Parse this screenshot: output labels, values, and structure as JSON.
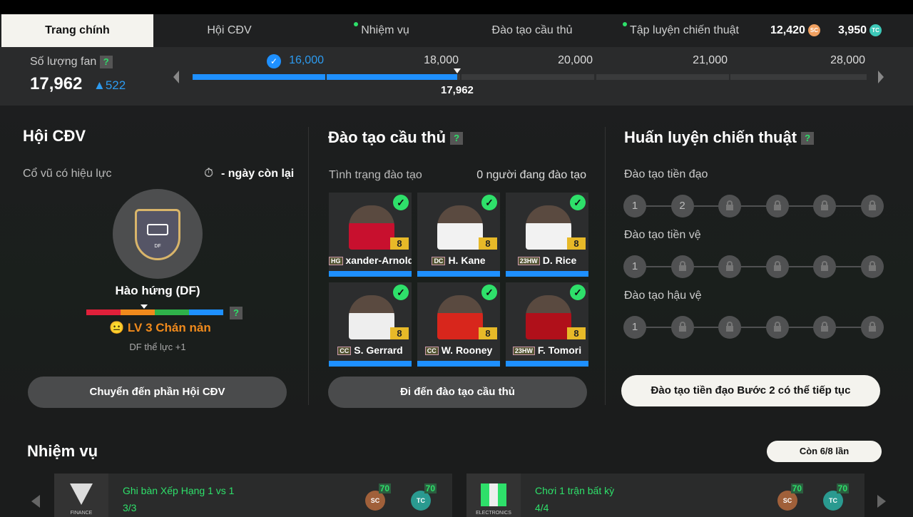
{
  "tabs": [
    {
      "label": "Trang chính",
      "active": true,
      "dot": false
    },
    {
      "label": "Hội CĐV",
      "dot": false
    },
    {
      "label": "Nhiệm vụ",
      "dot": true
    },
    {
      "label": "Đào tạo cầu thủ",
      "dot": false
    },
    {
      "label": "Tập luyện chiến thuật",
      "dot": true
    }
  ],
  "currency": {
    "sc": "12,420",
    "sc_icon": "SC",
    "tc": "3,950",
    "tc_icon": "TC",
    "sc_color": "#f0a060",
    "tc_color": "#3cc8b8"
  },
  "fans": {
    "label": "Số lượng fan",
    "help": "?",
    "count": "17,962",
    "delta": "▲522",
    "current_marker": "17,962",
    "current_value": 17962,
    "milestones": [
      {
        "value": "16,000",
        "reached": true
      },
      {
        "value": "18,000"
      },
      {
        "value": "20,000"
      },
      {
        "value": "21,000"
      },
      {
        "value": "28,000"
      }
    ]
  },
  "club": {
    "title": "Hội CĐV",
    "effect_label": "Cổ vũ có hiệu lực",
    "days_left": "- ngày còn lại",
    "badge_pos": "DF",
    "buff_name": "Hào hứng (DF)",
    "help": "?",
    "mood": "LV 3 Chán nản",
    "mood_level_fraction": 0.42,
    "buff_effect": "DF thể lực +1",
    "button": "Chuyển đến phần Hội CĐV"
  },
  "training": {
    "title": "Đào tạo cầu thủ",
    "help": "?",
    "status_label": "Tình trạng đào tạo",
    "status_count": "0 người đang đào tạo",
    "button": "Đi đến đào tạo cầu thủ",
    "players": [
      {
        "name": "xander-Arnold",
        "season": "HG",
        "level": "8",
        "kit": "#c8102e"
      },
      {
        "name": "H. Kane",
        "season": "DC",
        "level": "8",
        "kit": "#f2f2f2"
      },
      {
        "name": "D. Rice",
        "season": "23HW",
        "level": "8",
        "kit": "#f2f2f2"
      },
      {
        "name": "S. Gerrard",
        "season": "CC",
        "level": "8",
        "kit": "#eeeeee"
      },
      {
        "name": "W. Rooney",
        "season": "CC",
        "level": "8",
        "kit": "#d8261c"
      },
      {
        "name": "F. Tomori",
        "season": "23HW",
        "level": "8",
        "kit": "#b0101a"
      }
    ]
  },
  "tactics": {
    "title": "Huấn luyện chiến thuật",
    "help": "?",
    "button": "Đào tạo tiền đạo Bước 2 có thể tiếp tục",
    "tracks": [
      {
        "label": "Đào tạo tiền đạo",
        "steps": [
          "1",
          "2",
          "lock",
          "lock",
          "lock",
          "lock"
        ]
      },
      {
        "label": "Đào tạo tiền vệ",
        "steps": [
          "1",
          "lock",
          "lock",
          "lock",
          "lock",
          "lock"
        ]
      },
      {
        "label": "Đào tạo hậu vệ",
        "steps": [
          "1",
          "lock",
          "lock",
          "lock",
          "lock",
          "lock"
        ]
      }
    ]
  },
  "missions": {
    "title": "Nhiệm vụ",
    "remaining": "Còn 6/8 lần",
    "items": [
      {
        "sponsor": "FINANCE",
        "title": "Ghi bàn Xếp Hạng 1 vs 1",
        "progress": "3/3",
        "sc": "70",
        "tc": "70"
      },
      {
        "sponsor": "ELECTRONICS",
        "title": "Chơi 1 trận bất kỳ",
        "progress": "4/4",
        "sc": "70",
        "tc": "70"
      }
    ]
  }
}
